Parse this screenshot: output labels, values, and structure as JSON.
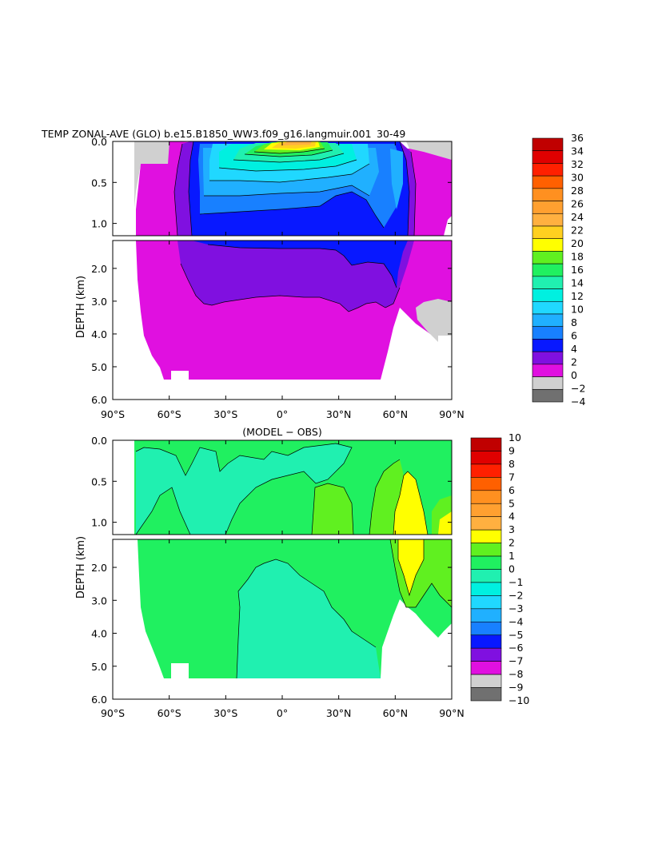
{
  "chart_data": [
    {
      "type": "heatmap",
      "title": "TEMP ZONAL-AVE (GLO) b.e15.B1850_WW3.f09_g16.langmuir.001  30-49",
      "ylabel": "DEPTH (km)",
      "xlabel": "",
      "x_tick_labels": [
        "90°S",
        "60°S",
        "30°S",
        "0°",
        "30°N",
        "60°N",
        "90°N"
      ],
      "x_ticks": [
        -90,
        -60,
        -30,
        0,
        30,
        60,
        90
      ],
      "y_tick_labels_upper": [
        "0.0",
        "0.5",
        "1.0"
      ],
      "y_ticks_upper": [
        0.0,
        0.5,
        1.0
      ],
      "y_tick_labels_lower": [
        "2.0",
        "3.0",
        "4.0",
        "5.0",
        "6.0"
      ],
      "y_ticks_lower": [
        2.0,
        3.0,
        4.0,
        5.0,
        6.0
      ],
      "xlim": [
        -90,
        90
      ],
      "ylim_upper": [
        0.0,
        1.15
      ],
      "ylim_lower": [
        1.15,
        6.0
      ],
      "colorbar_labels": [
        "36",
        "34",
        "32",
        "30",
        "28",
        "26",
        "24",
        "22",
        "20",
        "18",
        "16",
        "14",
        "12",
        "10",
        "8",
        "6",
        "4",
        "2",
        "0",
        "−2",
        "−4"
      ],
      "colors": [
        "#c00000",
        "#e00000",
        "#ff2000",
        "#ff6000",
        "#ff9020",
        "#ffa030",
        "#ffb040",
        "#ffd020",
        "#ffff00",
        "#60f020",
        "#20f060",
        "#20f0b0",
        "#00f0e0",
        "#20d8ff",
        "#20b0ff",
        "#1880ff",
        "#0818ff",
        "#8010e0",
        "#e010e0",
        "#d0d0d0",
        "#707070"
      ]
    },
    {
      "type": "heatmap",
      "title": "(MODEL − OBS)",
      "ylabel": "DEPTH (km)",
      "xlabel": "",
      "x_tick_labels": [
        "90°S",
        "60°S",
        "30°S",
        "0°",
        "30°N",
        "60°N",
        "90°N"
      ],
      "x_ticks": [
        -90,
        -60,
        -30,
        0,
        30,
        60,
        90
      ],
      "y_tick_labels_upper": [
        "0.0",
        "0.5",
        "1.0"
      ],
      "y_ticks_upper": [
        0.0,
        0.5,
        1.0
      ],
      "y_tick_labels_lower": [
        "2.0",
        "3.0",
        "4.0",
        "5.0",
        "6.0"
      ],
      "y_ticks_lower": [
        2.0,
        3.0,
        4.0,
        5.0,
        6.0
      ],
      "xlim": [
        -90,
        90
      ],
      "ylim_upper": [
        0.0,
        1.15
      ],
      "ylim_lower": [
        1.15,
        6.0
      ],
      "colorbar_labels": [
        "10",
        "9",
        "8",
        "7",
        "6",
        "5",
        "4",
        "3",
        "2",
        "1",
        "0",
        "−1",
        "−2",
        "−3",
        "−4",
        "−5",
        "−6",
        "−7",
        "−8",
        "−9",
        "−10"
      ],
      "colors": [
        "#c00000",
        "#e00000",
        "#ff2000",
        "#ff6000",
        "#ff9020",
        "#ffa030",
        "#ffb040",
        "#ffff00",
        "#60f020",
        "#20f060",
        "#20f0b0",
        "#00f0e0",
        "#20d8ff",
        "#20b0ff",
        "#1880ff",
        "#0818ff",
        "#8010e0",
        "#e010e0",
        "#d0d0d0",
        "#707070"
      ]
    }
  ]
}
